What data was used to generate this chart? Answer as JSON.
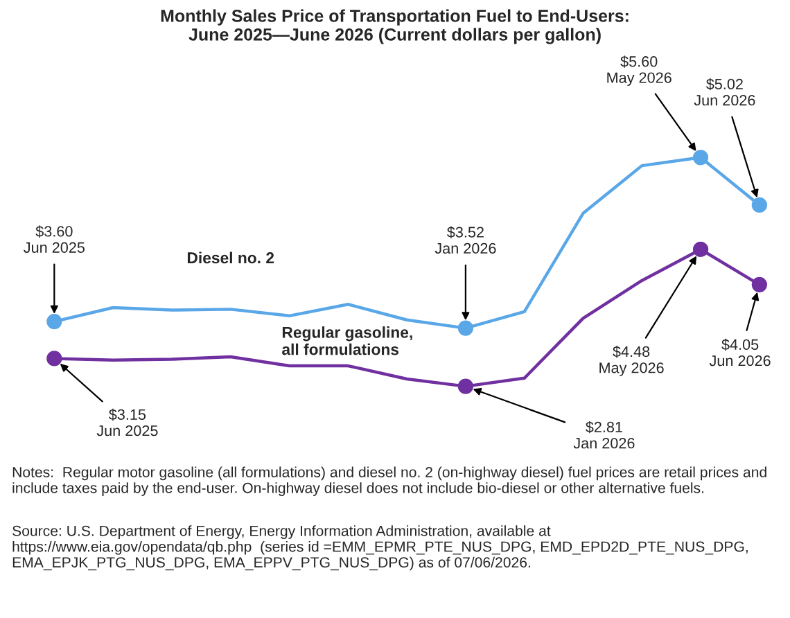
{
  "chart_data": {
    "type": "line",
    "title": "Monthly Sales Price of Transportation Fuel to End-Users:\nJune 2025—June 2026 (Current dollars per gallon)",
    "categories": [
      null,
      null,
      null,
      null,
      null,
      null,
      null,
      null,
      null,
      null,
      null,
      null,
      null
    ],
    "series": [
      {
        "name": "Diesel no. 2",
        "color": "#5aa7e8",
        "values": [
          3.6,
          3.77,
          3.74,
          3.75,
          3.67,
          3.81,
          3.62,
          3.52,
          3.72,
          4.92,
          5.5,
          5.6,
          5.02
        ],
        "value_labels": [
          "$3.60\nJun 2025",
          null,
          null,
          null,
          null,
          null,
          null,
          "$3.52\nJan 2026",
          null,
          null,
          null,
          "$5.60\nMay 2026",
          "$5.02\nJun 2026"
        ]
      },
      {
        "name": "Regular gasoline,\nall formulations",
        "color": "#7030a0",
        "values": [
          3.15,
          3.13,
          3.14,
          3.17,
          3.06,
          3.06,
          2.9,
          2.81,
          2.91,
          3.64,
          4.1,
          4.48,
          4.05
        ],
        "value_labels": [
          "$3.15\nJun 2025",
          null,
          null,
          null,
          null,
          null,
          null,
          "$2.81\nJan 2026",
          null,
          null,
          null,
          "$4.48\nMay 2026",
          "$4.05\nJun 2026"
        ]
      }
    ],
    "line_style": "solid",
    "grid": false,
    "legend": false,
    "annotations": [
      "Notes:  Regular motor gasoline (all formulations) and diesel no. 2 (on-highway diesel) fuel prices are retail prices and include taxes paid by the end-user. On-highway diesel does not include bio-diesel or other alternative fuels.",
      "Source: U.S. Department of Energy, Energy Information Administration, available at https://www.eia.gov/opendata/qb.php  (series id =EMM_EPMR_PTE_NUS_DPG, EMD_EPD2D_PTE_NUS_DPG, EMA_EPJK_PTG_NUS_DPG, EMA_EPPV_PTG_NUS_DPG) as of 07/06/2026."
    ]
  }
}
